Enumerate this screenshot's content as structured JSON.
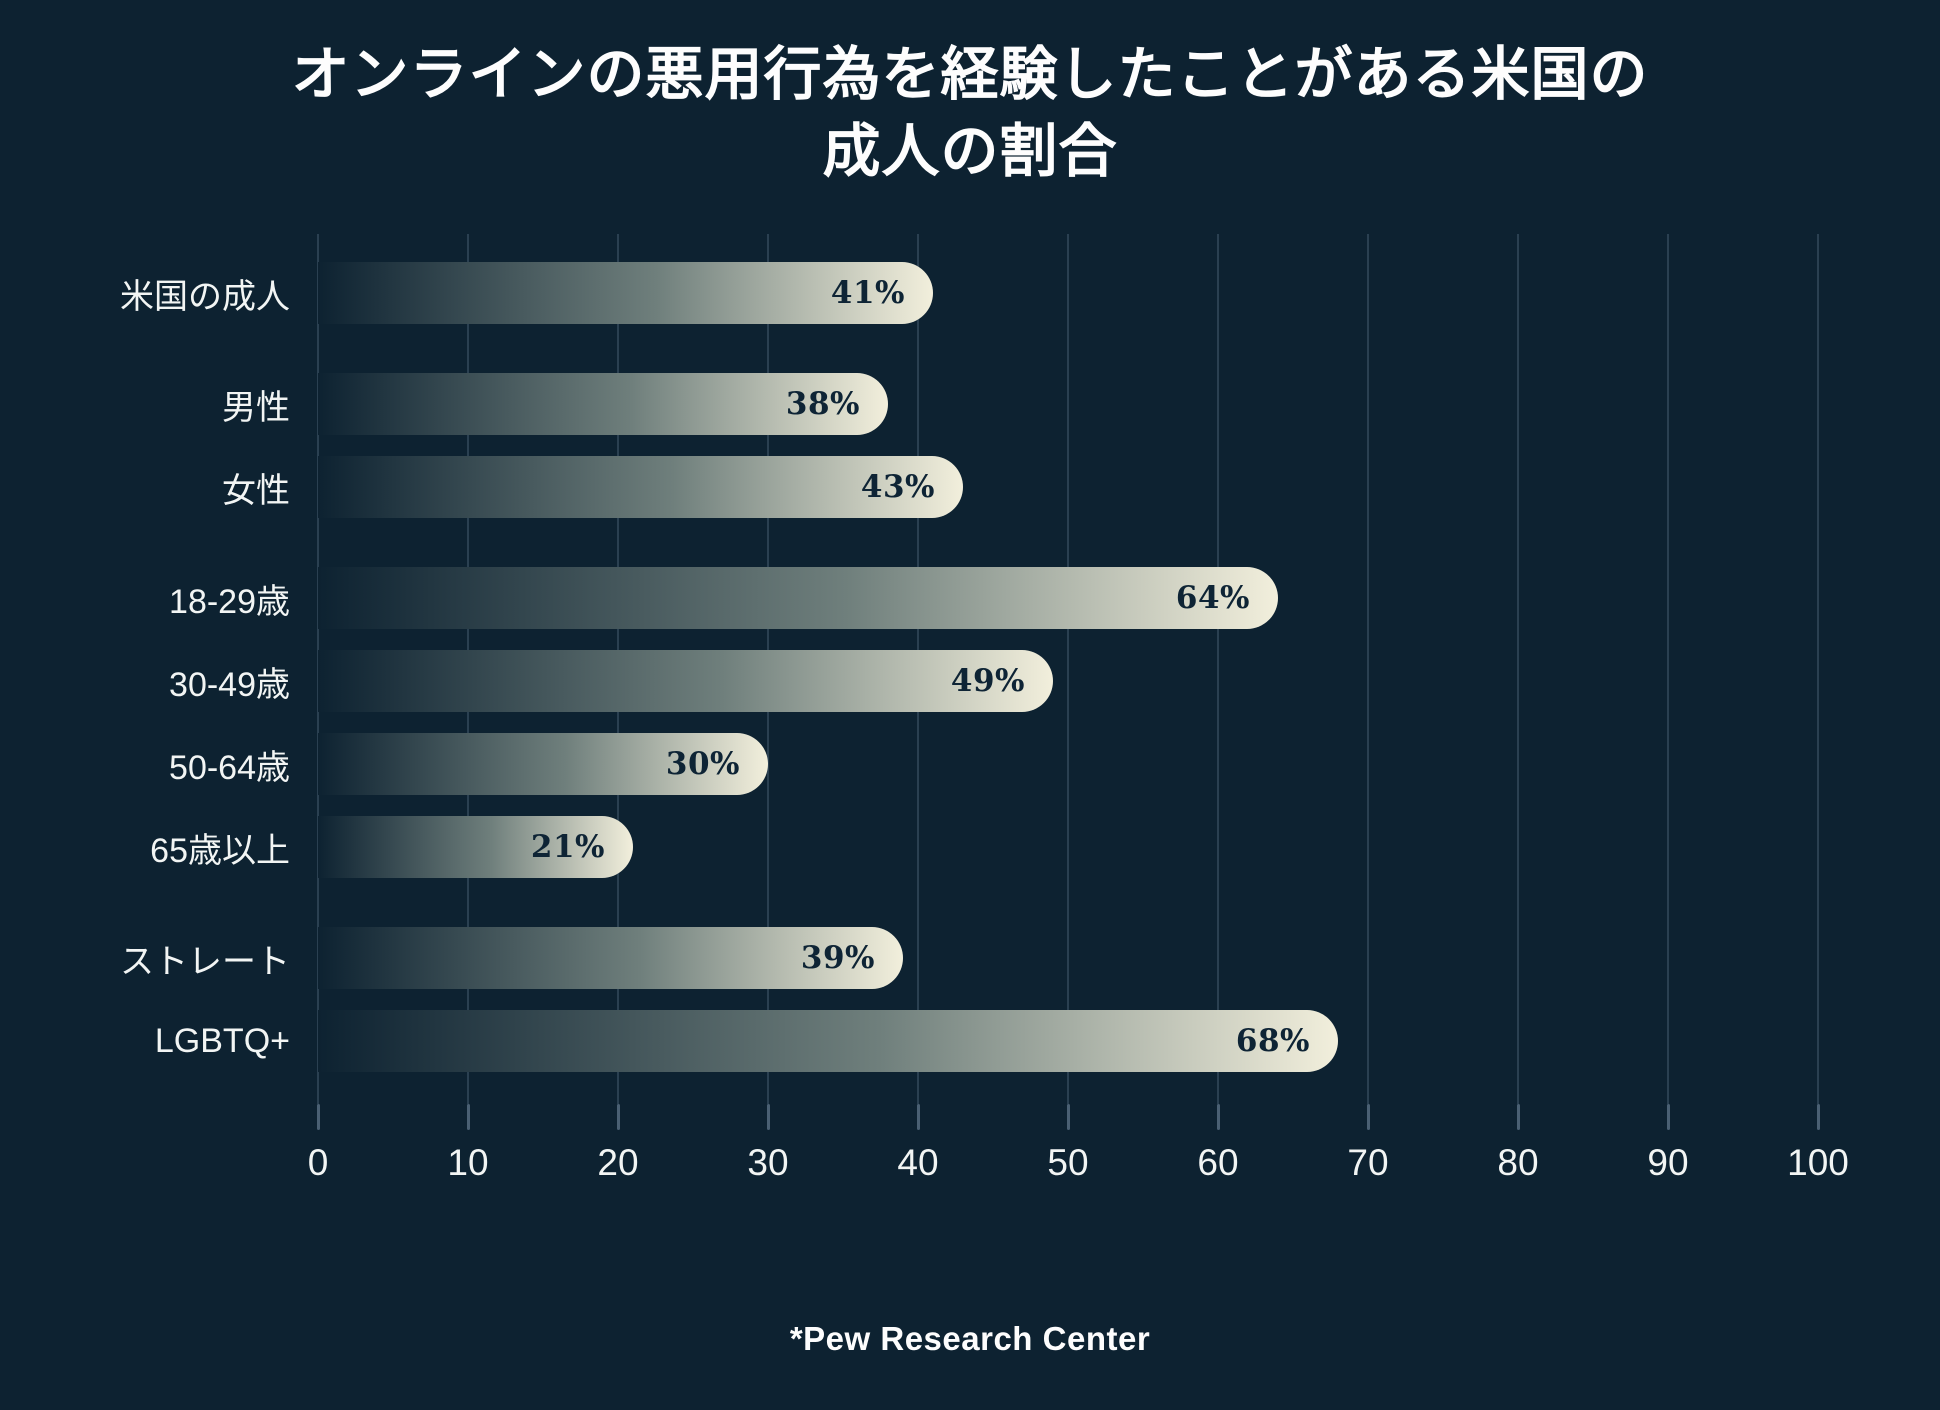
{
  "chart_data": {
    "type": "bar",
    "orientation": "horizontal",
    "title": "オンラインの悪用行為を経験したことがある米国の成人の割合",
    "title_lines": [
      "オンラインの悪用行為を経験したことがある米国の",
      "成人の割合"
    ],
    "categories": [
      "米国の成人",
      "男性",
      "女性",
      "18-29歳",
      "30-49歳",
      "50-64歳",
      "65歳以上",
      "ストレート",
      "LGBTQ+"
    ],
    "values": [
      41,
      38,
      43,
      64,
      49,
      30,
      21,
      39,
      68
    ],
    "value_labels": [
      "41%",
      "38%",
      "43%",
      "64%",
      "49%",
      "30%",
      "21%",
      "39%",
      "68%"
    ],
    "unit": "%",
    "xlabel": "",
    "ylabel": "",
    "xlim": [
      0,
      100
    ],
    "x_ticks": [
      0,
      10,
      20,
      30,
      40,
      50,
      60,
      70,
      80,
      90,
      100
    ],
    "group_gap_before_indices": [
      1,
      3,
      7
    ],
    "grid": true,
    "legend": false,
    "source": "*Pew Research Center"
  },
  "colors": {
    "background": "#0d2231",
    "bar_gradient_start": "#0d2231",
    "bar_gradient_mid": "#6f7f7c",
    "bar_gradient_end": "#f2efdc",
    "value_text": "#0e2435",
    "label_text": "#f2f5f4",
    "gridline": "#2a4051",
    "tick": "#4a6073",
    "title_text": "#fdfdfd"
  }
}
